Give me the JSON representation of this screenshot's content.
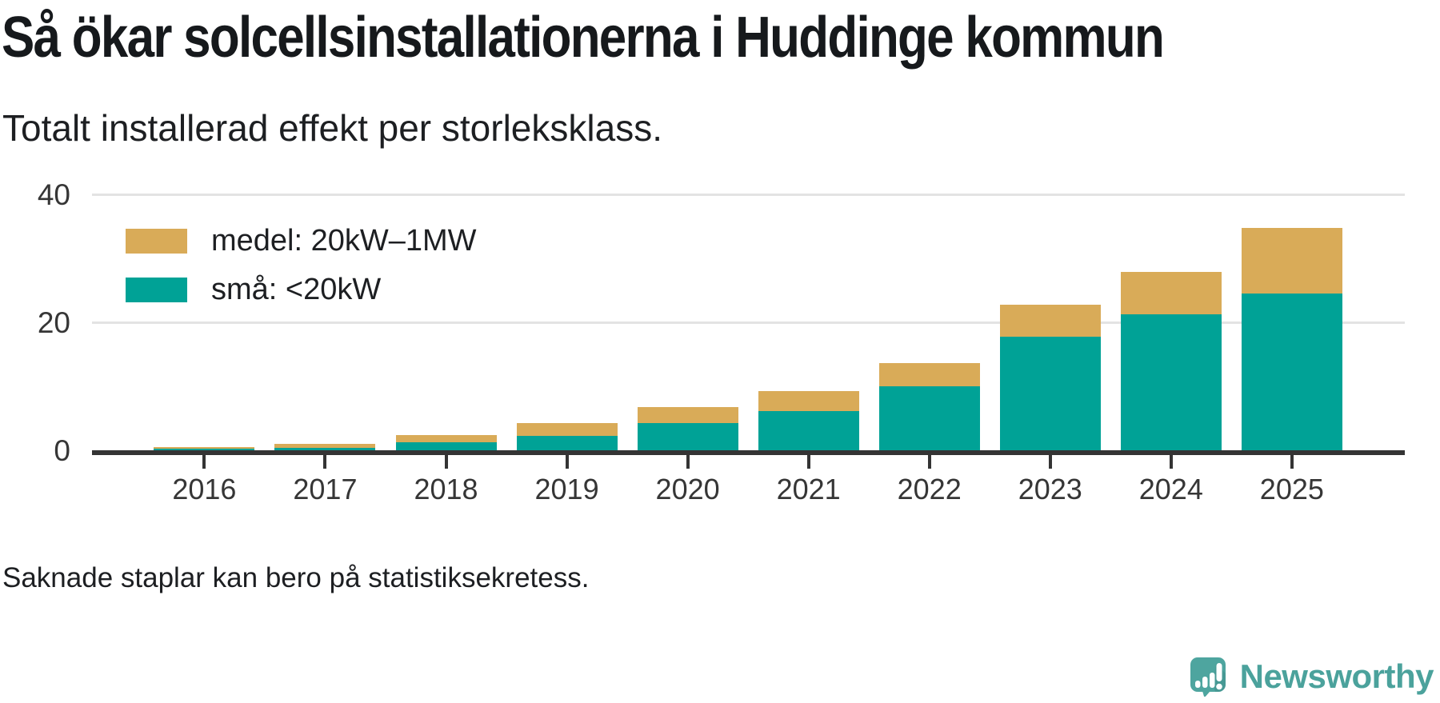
{
  "header": {
    "title": "Så ökar solcellsinstallationerna i Huddinge kommun",
    "subtitle": "Totalt installerad effekt per storleksklass."
  },
  "chart_data": {
    "type": "bar",
    "stacked": true,
    "categories": [
      "2016",
      "2017",
      "2018",
      "2019",
      "2020",
      "2021",
      "2022",
      "2023",
      "2024",
      "2025"
    ],
    "series": [
      {
        "name": "små: <20kW",
        "color": "#00a296",
        "values": [
          0.2,
          0.4,
          1.2,
          2.3,
          4.3,
          6.1,
          10.0,
          17.7,
          21.2,
          24.5
        ]
      },
      {
        "name": "medel: 20kW–1MW",
        "color": "#d9ab58",
        "values": [
          0.3,
          0.6,
          1.2,
          1.9,
          2.5,
          3.2,
          3.6,
          5.0,
          6.7,
          10.3
        ]
      }
    ],
    "legend": [
      {
        "label": "medel: 20kW–1MW",
        "color": "#d9ab58"
      },
      {
        "label": "små: <20kW",
        "color": "#00a296"
      }
    ],
    "title": "Så ökar solcellsinstallationerna i Huddinge kommun",
    "subtitle": "Totalt installerad effekt per storleksklass.",
    "xlabel": "",
    "ylabel": "",
    "ylim": [
      0,
      40
    ],
    "yticks": [
      0,
      20,
      40
    ],
    "grid": "horizontal",
    "legend_position": "top-left"
  },
  "footer": {
    "note": "Saknade staplar kan bero på statistiksekretess."
  },
  "branding": {
    "name": "Newsworthy",
    "color": "#4ba29c"
  }
}
